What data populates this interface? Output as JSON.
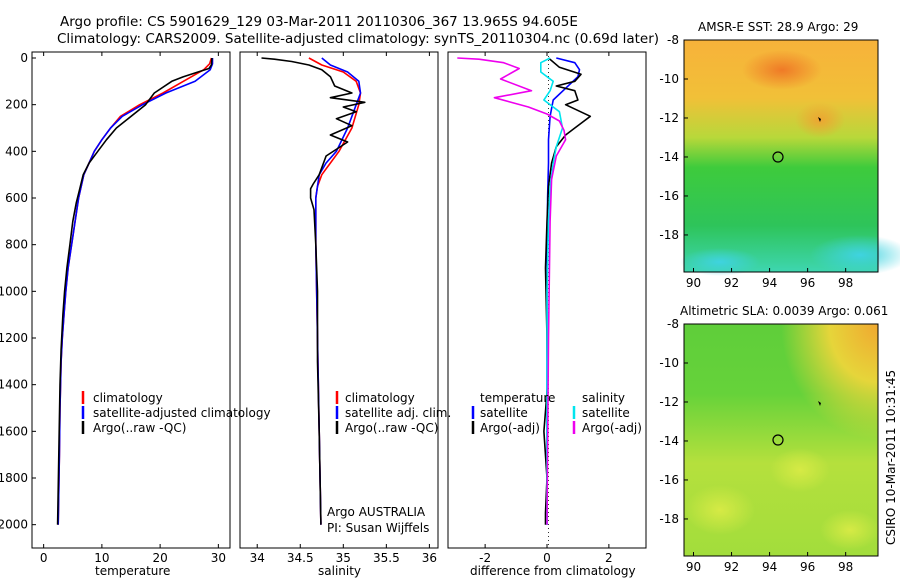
{
  "header": {
    "line1": "Argo profile: CS 5901629_129 03-Mar-2011 20110306_367 13.965S 94.605E",
    "line2": "Climatology: CARS2009. Satellite-adjusted climatology: synTS_20110304.nc (0.69d later)"
  },
  "colors": {
    "red": "#ff0000",
    "blue": "#0000ff",
    "black": "#000000",
    "cyan": "#00e5ee",
    "magenta": "#ee00ee"
  },
  "chart_data": [
    {
      "type": "line",
      "id": "temperature",
      "xlabel": "temperature",
      "ylabel": "",
      "xlim": [
        -2,
        32
      ],
      "ylim": [
        0,
        2100
      ],
      "y_reversed": true,
      "xticks": [
        "0",
        "10",
        "20",
        "30"
      ],
      "yticks": [
        "0",
        "200",
        "400",
        "600",
        "800",
        "1000",
        "1200",
        "1400",
        "1600",
        "1800",
        "2000"
      ],
      "legend": [
        "climatology",
        "satellite-adjusted climatology",
        "Argo(..raw -QC)"
      ],
      "series": [
        {
          "name": "climatology",
          "color": "red",
          "x": [
            28.8,
            28.5,
            27.5,
            24,
            20.5,
            16.5,
            13.2,
            11.5,
            10,
            8.7,
            7.8,
            6.9,
            6,
            5.4,
            4.8,
            4.2,
            3.8,
            3.5,
            3.2,
            3,
            2.8,
            2.7,
            2.5
          ],
          "y": [
            0,
            25,
            50,
            100,
            150,
            200,
            250,
            300,
            350,
            400,
            450,
            500,
            600,
            700,
            800,
            900,
            1000,
            1100,
            1200,
            1300,
            1500,
            1700,
            2000
          ]
        },
        {
          "name": "satellite-adjusted climatology",
          "color": "blue",
          "x": [
            29,
            29,
            28.6,
            26,
            21,
            17,
            13.5,
            11.5,
            10,
            8.7,
            7.8,
            6.9,
            6,
            5.4,
            4.8,
            4.2,
            3.8,
            3.5,
            3.2,
            3,
            2.8,
            2.7,
            2.5
          ],
          "y": [
            0,
            25,
            50,
            100,
            150,
            200,
            250,
            300,
            350,
            400,
            450,
            500,
            600,
            700,
            800,
            900,
            1000,
            1100,
            1200,
            1300,
            1500,
            1700,
            2000
          ]
        },
        {
          "name": "Argo(..raw -QC)",
          "color": "black",
          "x": [
            28.9,
            28.8,
            28.4,
            26.5,
            24,
            22,
            19,
            17.5,
            14,
            12.5,
            10.8,
            9.3,
            7.8,
            6.8,
            6.2,
            5.6,
            5,
            4.5,
            4,
            3.6,
            3.3,
            3,
            2.8,
            2.6,
            2.4
          ],
          "y": [
            0,
            30,
            45,
            60,
            80,
            100,
            150,
            200,
            270,
            300,
            350,
            400,
            450,
            500,
            560,
            620,
            700,
            800,
            900,
            1000,
            1100,
            1250,
            1400,
            1700,
            2000
          ]
        }
      ]
    },
    {
      "type": "line",
      "id": "salinity",
      "xlabel": "salinity",
      "xlim": [
        33.8,
        36.1
      ],
      "ylim": [
        0,
        2100
      ],
      "y_reversed": true,
      "xticks": [
        "34",
        "34.5",
        "35",
        "35.5",
        "36"
      ],
      "legend": [
        "climatology",
        "satellite adj. clim.",
        "Argo(..raw -QC)"
      ],
      "annotation": [
        "Argo AUSTRALIA",
        "PI: Susan Wijffels"
      ],
      "series": [
        {
          "name": "climatology",
          "color": "red",
          "x": [
            34.6,
            34.75,
            35,
            35.15,
            35.2,
            35.18,
            35.1,
            34.95,
            34.85,
            34.75,
            34.7,
            34.68,
            34.68,
            34.7,
            34.72,
            34.74
          ],
          "y": [
            0,
            30,
            60,
            100,
            150,
            200,
            300,
            400,
            450,
            500,
            550,
            600,
            800,
            1200,
            1600,
            2000
          ]
        },
        {
          "name": "satellite adj. clim.",
          "color": "blue",
          "x": [
            34.75,
            34.85,
            35.05,
            35.18,
            35.2,
            35.15,
            35.05,
            34.92,
            34.8,
            34.72,
            34.7,
            34.68,
            34.68,
            34.7,
            34.72,
            34.74
          ],
          "y": [
            0,
            30,
            60,
            100,
            150,
            200,
            300,
            400,
            450,
            500,
            550,
            600,
            800,
            1200,
            1600,
            2000
          ]
        },
        {
          "name": "Argo(..raw -QC)",
          "color": "black",
          "x": [
            34.05,
            34.2,
            34.4,
            34.6,
            34.75,
            34.85,
            34.9,
            35.1,
            34.85,
            35.25,
            35,
            35.15,
            34.92,
            35.1,
            34.85,
            35.05,
            34.8,
            34.72,
            34.65,
            34.62,
            34.62,
            34.66,
            34.68,
            34.7,
            34.7,
            34.72,
            34.74
          ],
          "y": [
            0,
            5,
            15,
            30,
            50,
            80,
            120,
            150,
            170,
            190,
            210,
            230,
            260,
            290,
            330,
            360,
            420,
            500,
            540,
            560,
            600,
            650,
            800,
            1000,
            1300,
            1600,
            2000
          ]
        }
      ]
    },
    {
      "type": "line",
      "id": "difference",
      "xlabel": "difference from climatology",
      "xlim": [
        -3.2,
        3.2
      ],
      "ylim": [
        0,
        2100
      ],
      "y_reversed": true,
      "xticks": [
        "-2",
        "0",
        "2"
      ],
      "legend_left": [
        "temperature",
        "satellite",
        "Argo(-adj)"
      ],
      "legend_right": [
        "salinity",
        "satellite",
        "Argo(-adj)"
      ],
      "series": [
        {
          "name": "temperature satellite",
          "color": "blue",
          "x": [
            0.3,
            0.9,
            1.05,
            1.0,
            0.6,
            0.2,
            0.1,
            0.05,
            0.05,
            0.02,
            0.0,
            0.0
          ],
          "y": [
            0,
            20,
            50,
            80,
            130,
            180,
            250,
            350,
            450,
            600,
            1000,
            2000
          ]
        },
        {
          "name": "temperature Argo(-adj)",
          "color": "black",
          "x": [
            0.05,
            0.4,
            1.1,
            0.9,
            0.3,
            0.9,
            1.0,
            0.6,
            1.4,
            1.2,
            0.9,
            0.6,
            0.3,
            0.15,
            0.05,
            0.0,
            -0.05,
            0.0,
            0.02,
            -0.1,
            0.0,
            -0.05,
            -0.05
          ],
          "y": [
            0,
            40,
            70,
            100,
            120,
            140,
            180,
            200,
            250,
            270,
            300,
            330,
            380,
            450,
            550,
            700,
            900,
            1200,
            1400,
            1600,
            1800,
            1950,
            2000
          ]
        },
        {
          "name": "salinity satellite",
          "color": "cyan",
          "x": [
            0.1,
            -0.2,
            -0.2,
            0.2,
            0.1,
            -0.1,
            0.4,
            0.5,
            0.3,
            0.2,
            0.1,
            0.05,
            0.0,
            0.0
          ],
          "y": [
            0,
            20,
            60,
            100,
            140,
            180,
            230,
            300,
            380,
            450,
            550,
            700,
            1000,
            2000
          ]
        },
        {
          "name": "salinity Argo(-adj)",
          "color": "magenta",
          "x": [
            -2.9,
            -2.2,
            -1.4,
            -0.9,
            -1.5,
            -0.5,
            -1.7,
            -0.6,
            0.0,
            0.4,
            0.55,
            0.6,
            0.3,
            0.15,
            0.1,
            0.05,
            0.0
          ],
          "y": [
            0,
            5,
            20,
            45,
            90,
            140,
            170,
            210,
            240,
            270,
            310,
            350,
            420,
            520,
            700,
            1200,
            2000
          ]
        }
      ]
    },
    {
      "type": "heatmap",
      "id": "sst-map",
      "title": "AMSR-E SST: 28.9 Argo: 29",
      "xticks": [
        "90",
        "92",
        "94",
        "96",
        "98"
      ],
      "yticks": [
        "-8",
        "-10",
        "-12",
        "-14",
        "-16",
        "-18"
      ],
      "xlim": [
        89.5,
        99.7
      ],
      "ylim": [
        -19.9,
        -8
      ],
      "marker": {
        "lon": 94.605,
        "lat": -13.965
      }
    },
    {
      "type": "heatmap",
      "id": "sla-map",
      "title": "Altimetric SLA: 0.0039 Argo: 0.061",
      "xticks": [
        "90",
        "92",
        "94",
        "96",
        "98"
      ],
      "yticks": [
        "-8",
        "-10",
        "-12",
        "-14",
        "-16",
        "-18"
      ],
      "xlim": [
        89.5,
        99.7
      ],
      "ylim": [
        -19.9,
        -8
      ],
      "marker": {
        "lon": 94.605,
        "lat": -13.965
      }
    }
  ],
  "footer": {
    "stamp": "CSIRO 10-Mar-2011 10:31:45"
  }
}
